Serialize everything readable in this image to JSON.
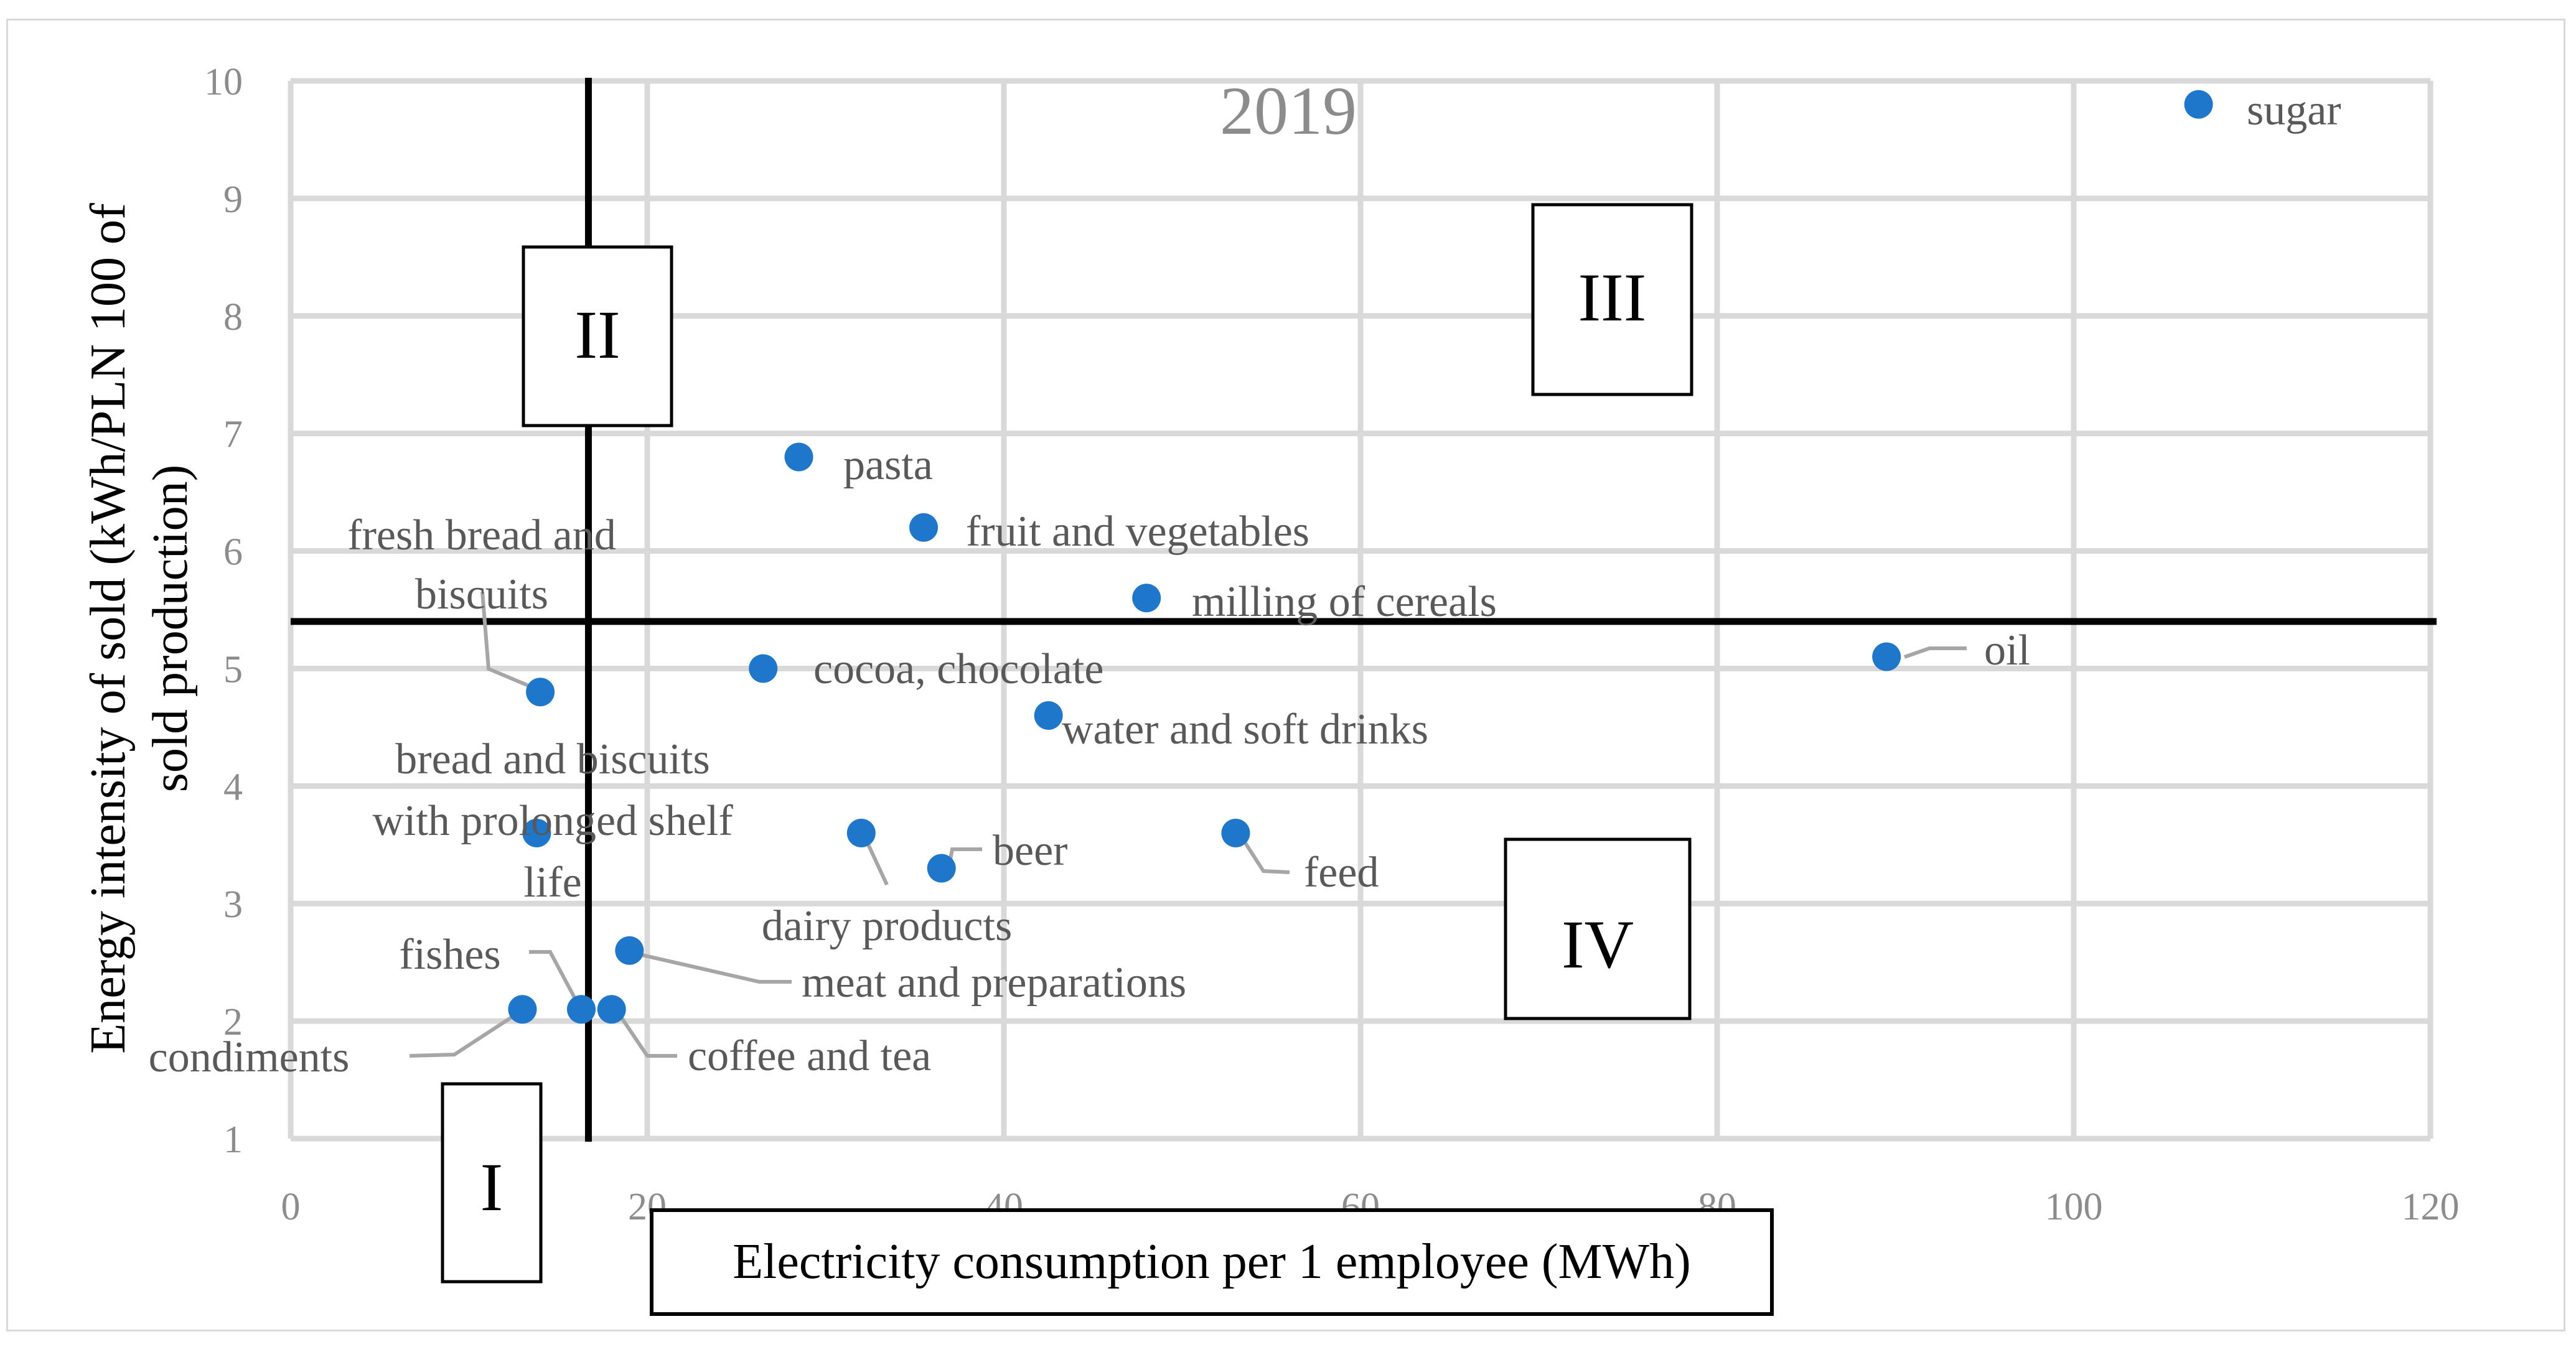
{
  "chart_data": {
    "type": "scatter",
    "title": "2019",
    "xlabel": "Electricity consumption per 1 employee (MWh)",
    "ylabel_lines": [
      "Energy intensity of sold  (kWh/PLN 100 of",
      "sold production)"
    ],
    "xlim": [
      0,
      120
    ],
    "ylim": [
      1,
      10
    ],
    "xticks": [
      "0",
      "20",
      "40",
      "60",
      "80",
      "100",
      "120"
    ],
    "yticks": [
      "1",
      "2",
      "3",
      "4",
      "5",
      "6",
      "7",
      "8",
      "9",
      "10"
    ],
    "grid": true,
    "reference_lines": {
      "x": 16.7,
      "y": 5.4
    },
    "quadrants": [
      "I",
      "II",
      "III",
      "IV"
    ],
    "point_color": "#1f77cc",
    "points": [
      {
        "name": "sugar",
        "x": 107,
        "y": 9.8
      },
      {
        "name": "pasta",
        "x": 28.5,
        "y": 6.8
      },
      {
        "name": "fruit and vegetables",
        "x": 35.5,
        "y": 6.2
      },
      {
        "name": "milling of cereals",
        "x": 48,
        "y": 5.6
      },
      {
        "name": "oil",
        "x": 89.5,
        "y": 5.1
      },
      {
        "name": "cocoa, chocolate",
        "x": 26.5,
        "y": 5.0
      },
      {
        "name": "fresh bread and biscuits",
        "x": 14,
        "y": 4.8
      },
      {
        "name": "water and soft drinks",
        "x": 42.5,
        "y": 4.6
      },
      {
        "name": "bread and biscuits with prolonged shelf life",
        "x": 13.8,
        "y": 3.6
      },
      {
        "name": "dairy products",
        "x": 32,
        "y": 3.6
      },
      {
        "name": "beer",
        "x": 36.5,
        "y": 3.3
      },
      {
        "name": "feed",
        "x": 53,
        "y": 3.6
      },
      {
        "name": "meat and preparations",
        "x": 19,
        "y": 2.6
      },
      {
        "name": "fishes",
        "x": 16.3,
        "y": 2.1
      },
      {
        "name": "coffee and tea",
        "x": 18,
        "y": 2.1
      },
      {
        "name": "condiments",
        "x": 13,
        "y": 2.1
      }
    ]
  }
}
